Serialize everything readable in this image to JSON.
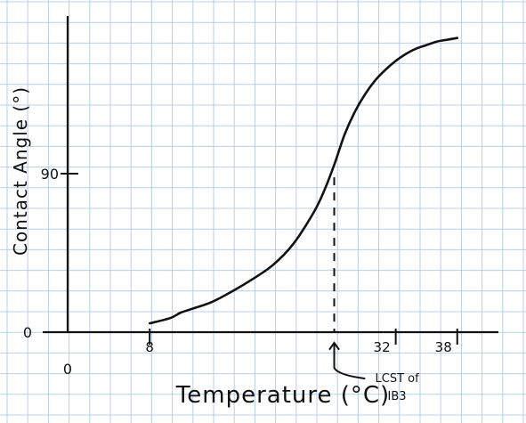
{
  "chart_data": {
    "type": "line",
    "title": "",
    "xlabel": "Temperature (°C)",
    "ylabel": "Contact Angle (°)",
    "xlim": [
      0,
      40
    ],
    "ylim": [
      0,
      165
    ],
    "origin_labels": {
      "x": "0",
      "y": "0"
    },
    "grid": true,
    "colors": {
      "grid": "#b9cde8",
      "ink": "#111111",
      "background": "#ffffff"
    },
    "x_ticks": [
      {
        "value": 8,
        "label": "8"
      },
      {
        "value": 32,
        "label": "32"
      },
      {
        "value": 38,
        "label": "38"
      }
    ],
    "y_ticks": [
      {
        "value": 90,
        "label": "90"
      }
    ],
    "series": [
      {
        "x": [
          8,
          10,
          11,
          12,
          14,
          16,
          18,
          20,
          22,
          24,
          25,
          26,
          27,
          28,
          29,
          30,
          31,
          32,
          33,
          34,
          35,
          36,
          37,
          38
        ],
        "y": [
          5,
          8,
          11,
          13,
          17,
          23,
          30,
          38,
          50,
          68,
          80,
          95,
          112,
          125,
          135,
          143,
          149,
          154,
          158,
          161,
          163,
          165,
          166,
          167
        ]
      }
    ],
    "annotation": {
      "x": 26,
      "text_line1": "LCST of",
      "text_line2": "IB3"
    }
  }
}
